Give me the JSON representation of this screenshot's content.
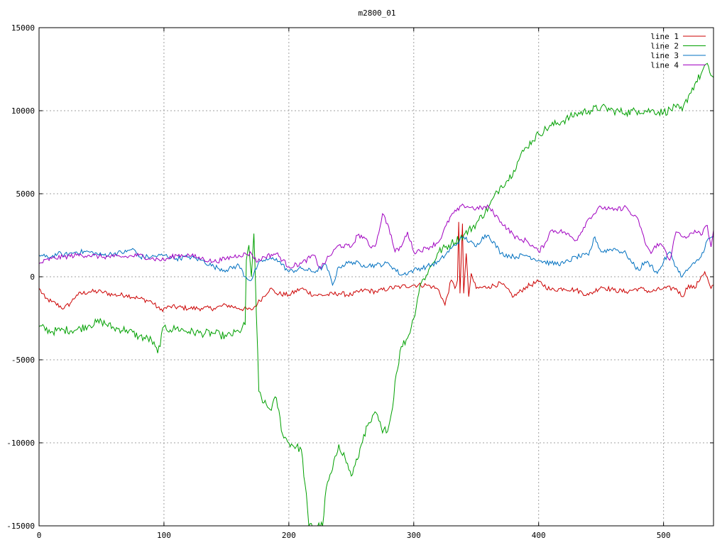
{
  "chart_data": {
    "type": "line",
    "title": "m2800_01",
    "xlabel": "",
    "ylabel": "",
    "xlim": [
      0,
      540
    ],
    "ylim": [
      -15000,
      15000
    ],
    "xticks": [
      0,
      100,
      200,
      300,
      400,
      500
    ],
    "yticks": [
      -15000,
      -10000,
      -5000,
      0,
      5000,
      10000,
      15000
    ],
    "grid": true,
    "legend_position": "top-right",
    "series": [
      {
        "name": "line 1",
        "color": "#cc0000",
        "points": [
          [
            0,
            -700
          ],
          [
            5,
            -1300
          ],
          [
            10,
            -1500
          ],
          [
            20,
            -1900
          ],
          [
            25,
            -1600
          ],
          [
            30,
            -1100
          ],
          [
            40,
            -900
          ],
          [
            50,
            -900
          ],
          [
            60,
            -1100
          ],
          [
            70,
            -1100
          ],
          [
            80,
            -1300
          ],
          [
            90,
            -1500
          ],
          [
            97,
            -2000
          ],
          [
            105,
            -1800
          ],
          [
            120,
            -1900
          ],
          [
            130,
            -1900
          ],
          [
            140,
            -1900
          ],
          [
            150,
            -1700
          ],
          [
            160,
            -1900
          ],
          [
            170,
            -2000
          ],
          [
            175,
            -1600
          ],
          [
            185,
            -700
          ],
          [
            190,
            -1000
          ],
          [
            200,
            -1100
          ],
          [
            210,
            -700
          ],
          [
            220,
            -1100
          ],
          [
            230,
            -1100
          ],
          [
            240,
            -1000
          ],
          [
            250,
            -1100
          ],
          [
            260,
            -800
          ],
          [
            270,
            -900
          ],
          [
            280,
            -700
          ],
          [
            290,
            -600
          ],
          [
            300,
            -500
          ],
          [
            310,
            -500
          ],
          [
            315,
            -600
          ],
          [
            320,
            -800
          ],
          [
            325,
            -1700
          ],
          [
            330,
            -200
          ],
          [
            333,
            -700
          ],
          [
            335,
            -200
          ],
          [
            336,
            3300
          ],
          [
            337,
            -1000
          ],
          [
            339,
            3200
          ],
          [
            340,
            -1000
          ],
          [
            342,
            1400
          ],
          [
            344,
            -1200
          ],
          [
            346,
            200
          ],
          [
            348,
            -300
          ],
          [
            350,
            -700
          ],
          [
            360,
            -600
          ],
          [
            370,
            -400
          ],
          [
            380,
            -1200
          ],
          [
            390,
            -600
          ],
          [
            400,
            -300
          ],
          [
            410,
            -800
          ],
          [
            420,
            -700
          ],
          [
            430,
            -800
          ],
          [
            440,
            -1100
          ],
          [
            450,
            -600
          ],
          [
            460,
            -800
          ],
          [
            470,
            -900
          ],
          [
            480,
            -700
          ],
          [
            490,
            -900
          ],
          [
            500,
            -700
          ],
          [
            510,
            -700
          ],
          [
            515,
            -1200
          ],
          [
            520,
            -500
          ],
          [
            525,
            -700
          ],
          [
            530,
            0
          ],
          [
            533,
            300
          ],
          [
            536,
            -300
          ],
          [
            538,
            -700
          ],
          [
            540,
            -500
          ]
        ]
      },
      {
        "name": "line 2",
        "color": "#00a000",
        "points": [
          [
            0,
            -3000
          ],
          [
            10,
            -3300
          ],
          [
            20,
            -3200
          ],
          [
            30,
            -3200
          ],
          [
            40,
            -2900
          ],
          [
            50,
            -2700
          ],
          [
            60,
            -3100
          ],
          [
            70,
            -3200
          ],
          [
            80,
            -3600
          ],
          [
            90,
            -3800
          ],
          [
            95,
            -4600
          ],
          [
            100,
            -3000
          ],
          [
            105,
            -3200
          ],
          [
            110,
            -3100
          ],
          [
            120,
            -3300
          ],
          [
            130,
            -3400
          ],
          [
            140,
            -3400
          ],
          [
            145,
            -3500
          ],
          [
            150,
            -3600
          ],
          [
            160,
            -3300
          ],
          [
            165,
            -2900
          ],
          [
            166,
            1000
          ],
          [
            168,
            1900
          ],
          [
            170,
            0
          ],
          [
            172,
            2600
          ],
          [
            174,
            -2300
          ],
          [
            176,
            -6900
          ],
          [
            180,
            -7600
          ],
          [
            185,
            -8000
          ],
          [
            190,
            -7300
          ],
          [
            195,
            -9500
          ],
          [
            200,
            -10000
          ],
          [
            210,
            -10400
          ],
          [
            215,
            -14000
          ],
          [
            216,
            -15000
          ],
          [
            227,
            -15000
          ],
          [
            230,
            -12700
          ],
          [
            235,
            -11600
          ],
          [
            240,
            -10100
          ],
          [
            245,
            -10900
          ],
          [
            250,
            -12000
          ],
          [
            255,
            -11000
          ],
          [
            260,
            -9500
          ],
          [
            265,
            -8800
          ],
          [
            270,
            -8200
          ],
          [
            275,
            -9400
          ],
          [
            280,
            -9000
          ],
          [
            283,
            -7900
          ],
          [
            285,
            -6300
          ],
          [
            290,
            -4200
          ],
          [
            295,
            -3700
          ],
          [
            300,
            -2500
          ],
          [
            305,
            -500
          ],
          [
            310,
            100
          ],
          [
            315,
            800
          ],
          [
            320,
            1500
          ],
          [
            330,
            2000
          ],
          [
            340,
            2500
          ],
          [
            350,
            3200
          ],
          [
            360,
            4200
          ],
          [
            370,
            5500
          ],
          [
            375,
            5800
          ],
          [
            380,
            6400
          ],
          [
            385,
            7200
          ],
          [
            390,
            7800
          ],
          [
            395,
            8200
          ],
          [
            400,
            8600
          ],
          [
            410,
            9100
          ],
          [
            420,
            9400
          ],
          [
            430,
            9800
          ],
          [
            440,
            10000
          ],
          [
            450,
            10200
          ],
          [
            460,
            10000
          ],
          [
            470,
            9900
          ],
          [
            480,
            10000
          ],
          [
            490,
            10000
          ],
          [
            500,
            9900
          ],
          [
            510,
            10200
          ],
          [
            515,
            10000
          ],
          [
            520,
            10900
          ],
          [
            525,
            11600
          ],
          [
            530,
            12200
          ],
          [
            534,
            12800
          ],
          [
            537,
            12300
          ],
          [
            540,
            12000
          ]
        ]
      },
      {
        "name": "line 3",
        "color": "#0070c0",
        "points": [
          [
            0,
            1300
          ],
          [
            5,
            1200
          ],
          [
            10,
            1200
          ],
          [
            15,
            1400
          ],
          [
            20,
            1300
          ],
          [
            30,
            1500
          ],
          [
            40,
            1500
          ],
          [
            50,
            1300
          ],
          [
            60,
            1400
          ],
          [
            70,
            1500
          ],
          [
            75,
            1700
          ],
          [
            80,
            1200
          ],
          [
            90,
            1200
          ],
          [
            100,
            1300
          ],
          [
            110,
            1100
          ],
          [
            120,
            1200
          ],
          [
            130,
            1000
          ],
          [
            140,
            600
          ],
          [
            150,
            400
          ],
          [
            160,
            700
          ],
          [
            165,
            0
          ],
          [
            170,
            -200
          ],
          [
            175,
            700
          ],
          [
            180,
            1000
          ],
          [
            190,
            1100
          ],
          [
            200,
            300
          ],
          [
            210,
            500
          ],
          [
            220,
            300
          ],
          [
            230,
            700
          ],
          [
            235,
            -500
          ],
          [
            240,
            600
          ],
          [
            250,
            900
          ],
          [
            260,
            700
          ],
          [
            270,
            700
          ],
          [
            280,
            800
          ],
          [
            290,
            100
          ],
          [
            300,
            400
          ],
          [
            310,
            600
          ],
          [
            320,
            900
          ],
          [
            330,
            1700
          ],
          [
            340,
            2400
          ],
          [
            350,
            1800
          ],
          [
            355,
            2400
          ],
          [
            360,
            2500
          ],
          [
            370,
            1400
          ],
          [
            380,
            1200
          ],
          [
            390,
            1300
          ],
          [
            400,
            1000
          ],
          [
            410,
            800
          ],
          [
            420,
            800
          ],
          [
            430,
            1200
          ],
          [
            440,
            1300
          ],
          [
            445,
            2400
          ],
          [
            450,
            1500
          ],
          [
            460,
            1700
          ],
          [
            470,
            1400
          ],
          [
            475,
            800
          ],
          [
            480,
            400
          ],
          [
            485,
            900
          ],
          [
            490,
            700
          ],
          [
            495,
            200
          ],
          [
            500,
            900
          ],
          [
            505,
            1500
          ],
          [
            510,
            600
          ],
          [
            515,
            0
          ],
          [
            520,
            500
          ],
          [
            525,
            800
          ],
          [
            530,
            1200
          ],
          [
            535,
            2200
          ],
          [
            540,
            2400
          ]
        ]
      },
      {
        "name": "line 4",
        "color": "#a000c0",
        "points": [
          [
            0,
            800
          ],
          [
            10,
            1100
          ],
          [
            20,
            1200
          ],
          [
            30,
            1300
          ],
          [
            40,
            1300
          ],
          [
            50,
            1200
          ],
          [
            60,
            1200
          ],
          [
            70,
            1200
          ],
          [
            80,
            1300
          ],
          [
            90,
            1100
          ],
          [
            100,
            1000
          ],
          [
            110,
            1300
          ],
          [
            120,
            1300
          ],
          [
            130,
            1100
          ],
          [
            140,
            900
          ],
          [
            150,
            1100
          ],
          [
            160,
            1300
          ],
          [
            170,
            1400
          ],
          [
            175,
            900
          ],
          [
            180,
            1200
          ],
          [
            190,
            1400
          ],
          [
            200,
            600
          ],
          [
            210,
            800
          ],
          [
            220,
            1300
          ],
          [
            225,
            500
          ],
          [
            230,
            1000
          ],
          [
            240,
            1900
          ],
          [
            250,
            1800
          ],
          [
            255,
            2500
          ],
          [
            260,
            2400
          ],
          [
            265,
            1800
          ],
          [
            270,
            2000
          ],
          [
            275,
            3800
          ],
          [
            280,
            3000
          ],
          [
            285,
            1500
          ],
          [
            290,
            1800
          ],
          [
            295,
            2700
          ],
          [
            300,
            1500
          ],
          [
            310,
            1700
          ],
          [
            320,
            2100
          ],
          [
            330,
            3700
          ],
          [
            340,
            4300
          ],
          [
            350,
            4100
          ],
          [
            360,
            4200
          ],
          [
            370,
            3300
          ],
          [
            380,
            2500
          ],
          [
            385,
            2200
          ],
          [
            390,
            2200
          ],
          [
            400,
            1500
          ],
          [
            405,
            2000
          ],
          [
            410,
            2800
          ],
          [
            420,
            2700
          ],
          [
            430,
            2200
          ],
          [
            440,
            3500
          ],
          [
            450,
            4200
          ],
          [
            460,
            4000
          ],
          [
            470,
            4200
          ],
          [
            475,
            3700
          ],
          [
            480,
            3400
          ],
          [
            485,
            2100
          ],
          [
            490,
            1400
          ],
          [
            495,
            2000
          ],
          [
            500,
            1800
          ],
          [
            505,
            1000
          ],
          [
            510,
            2700
          ],
          [
            515,
            2400
          ],
          [
            520,
            2400
          ],
          [
            525,
            2800
          ],
          [
            530,
            2500
          ],
          [
            535,
            3100
          ],
          [
            538,
            1800
          ],
          [
            540,
            2800
          ]
        ]
      }
    ]
  }
}
